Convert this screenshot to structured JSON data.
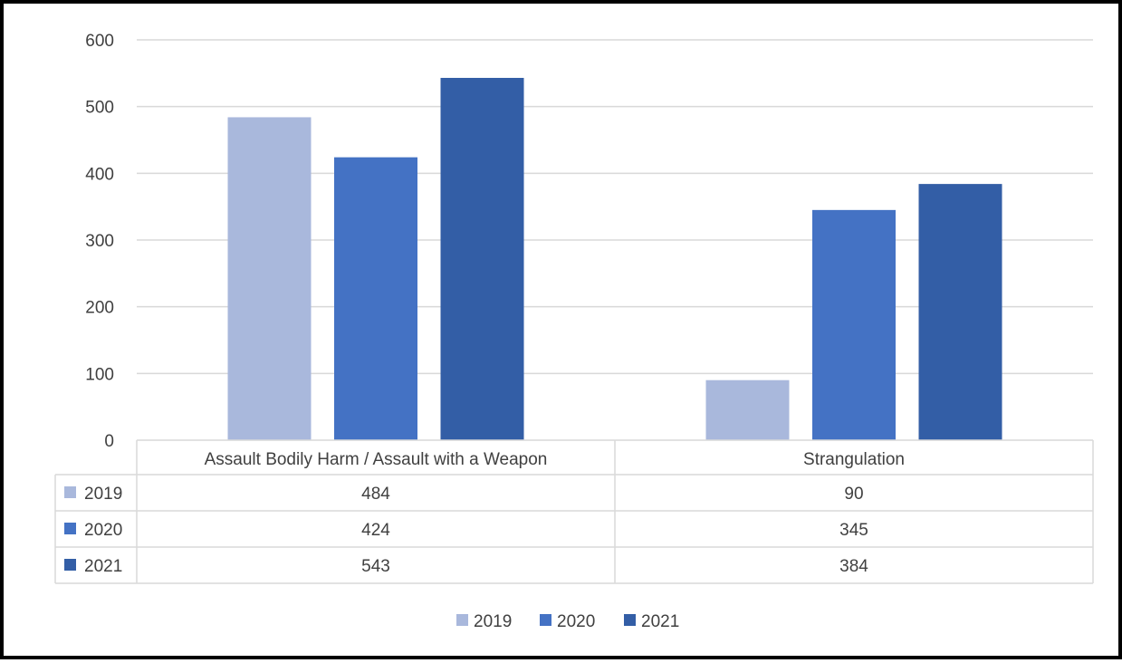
{
  "chart_data": {
    "type": "bar",
    "title": "",
    "xlabel": "",
    "ylabel": "",
    "ylim": [
      0,
      600
    ],
    "yticks": [
      0,
      100,
      200,
      300,
      400,
      500,
      600
    ],
    "grid": true,
    "legend_position": "bottom",
    "data_table": true,
    "categories": [
      "Assault Bodily Harm / Assault with a Weapon",
      "Strangulation"
    ],
    "series": [
      {
        "name": "2019",
        "color": "#a9b8dc",
        "values": [
          484,
          90
        ]
      },
      {
        "name": "2020",
        "color": "#4472c4",
        "values": [
          424,
          345
        ]
      },
      {
        "name": "2021",
        "color": "#335ea6",
        "values": [
          543,
          384
        ]
      }
    ]
  }
}
